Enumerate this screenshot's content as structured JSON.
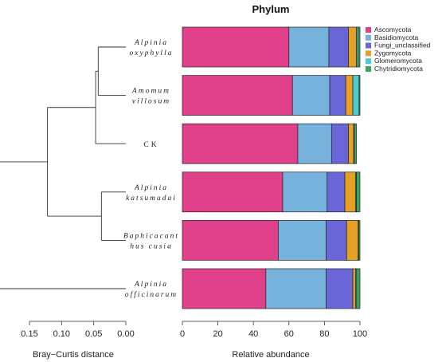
{
  "chart_data": {
    "type": "bar",
    "orientation": "horizontal",
    "stacked": true,
    "title": "Phylum",
    "xlabel": "Relative abundance",
    "xlim": [
      0,
      100
    ],
    "xticks": [
      0,
      20,
      40,
      60,
      80,
      100
    ],
    "legend_position": "top-right",
    "categories": [
      {
        "line1": "Alpinia",
        "line2": "oxyphylla",
        "italic": true
      },
      {
        "line1": "Amomum",
        "line2": "villosum",
        "italic": true
      },
      {
        "line1": "CK",
        "line2": "",
        "italic": false
      },
      {
        "line1": "Alpinia",
        "line2": "katsumadai",
        "italic": true
      },
      {
        "line1": "Baphicacant",
        "line2": "hus cusia",
        "italic": true
      },
      {
        "line1": "Alpinia",
        "line2": "officinarum",
        "italic": true
      }
    ],
    "series": [
      {
        "name": "Ascomycota",
        "color": "#e0408a",
        "values": [
          60,
          62,
          65,
          56.5,
          54,
          47
        ]
      },
      {
        "name": "Basidiomycota",
        "color": "#77b2dc",
        "values": [
          22.5,
          21,
          19,
          25,
          27,
          34
        ]
      },
      {
        "name": "Fungi_unclassified",
        "color": "#6a66d8",
        "values": [
          11,
          9,
          9.5,
          10,
          11.5,
          15
        ]
      },
      {
        "name": "Zygomycota",
        "color": "#e5a125",
        "values": [
          4.5,
          4,
          3,
          6,
          6.5,
          1.5
        ]
      },
      {
        "name": "Glomeromycota",
        "color": "#4ccad2",
        "values": [
          0.8,
          3.5,
          0.3,
          0.5,
          0.3,
          0.6
        ]
      },
      {
        "name": "Chytridiomycota",
        "color": "#3aa65c",
        "values": [
          1.2,
          0.5,
          1.2,
          2,
          0.7,
          1.9
        ]
      }
    ]
  },
  "dendrogram": {
    "xlabel": "Bray−Curtis distance",
    "xlim": [
      0.15,
      0.0
    ],
    "xticks": [
      "0.15",
      "0.10",
      "0.05",
      "0.00"
    ],
    "tick_values": [
      0.15,
      0.1,
      0.05,
      0.0
    ],
    "merges": [
      {
        "a": 0,
        "b": 1,
        "height": 0.043
      },
      {
        "a": 3,
        "b": 4,
        "height": 0.038
      },
      {
        "group": [
          0,
          1
        ],
        "leaf": 2,
        "height": 0.047
      },
      {
        "group": [
          0,
          1,
          2
        ],
        "group2": [
          3,
          4
        ],
        "height": 0.122
      },
      {
        "group": [
          0,
          1,
          2,
          3,
          4
        ],
        "leaf": 5,
        "height": 0.203
      }
    ]
  }
}
